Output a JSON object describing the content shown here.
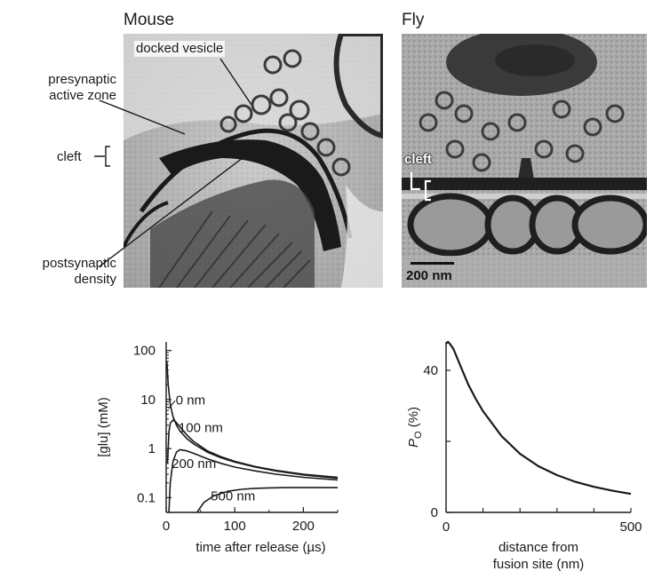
{
  "panels": {
    "mouse_title": "Mouse",
    "fly_title": "Fly"
  },
  "mouse_labels": {
    "docked_vesicle": "docked vesicle",
    "presynaptic_line1": "presynaptic",
    "presynaptic_line2": "active zone",
    "cleft": "cleft",
    "postsynaptic_line1": "postsynaptic",
    "postsynaptic_line2": "density"
  },
  "fly_labels": {
    "cleft": "cleft",
    "scale_bar": "200 nm"
  },
  "chart_data": [
    {
      "type": "line",
      "ylabel": "[glu] (mM)",
      "xlabel": "time after release (µs)",
      "yscale": "log",
      "xlim": [
        0,
        250
      ],
      "ylim": [
        0.05,
        150
      ],
      "xticks": [
        0,
        100,
        200
      ],
      "yticks": [
        100,
        10,
        1,
        0.1
      ],
      "ytick_labels": [
        "100",
        "10",
        "1",
        "0.1"
      ],
      "series": [
        {
          "name": "0 nm",
          "x": [
            1,
            3,
            6,
            10,
            15,
            20,
            30,
            40,
            60,
            80,
            100,
            130,
            160,
            200,
            250
          ],
          "y": [
            60,
            20,
            8,
            4.5,
            3,
            2.3,
            1.6,
            1.25,
            0.85,
            0.65,
            0.53,
            0.42,
            0.35,
            0.29,
            0.25
          ]
        },
        {
          "name": "100 nm",
          "x": [
            2,
            4,
            6,
            10,
            14,
            20,
            30,
            40,
            60,
            80,
            100,
            130,
            160,
            200,
            250
          ],
          "y": [
            0.5,
            2.2,
            3.3,
            3.8,
            3.5,
            2.8,
            1.9,
            1.4,
            0.9,
            0.68,
            0.55,
            0.43,
            0.36,
            0.3,
            0.26
          ]
        },
        {
          "name": "200 nm",
          "x": [
            4,
            6,
            10,
            15,
            20,
            30,
            40,
            60,
            80,
            100,
            130,
            160,
            200,
            250
          ],
          "y": [
            0.05,
            0.2,
            0.55,
            0.85,
            0.95,
            0.9,
            0.8,
            0.62,
            0.5,
            0.42,
            0.35,
            0.3,
            0.26,
            0.23
          ]
        },
        {
          "name": "500 nm",
          "x": [
            45,
            55,
            70,
            90,
            110,
            130,
            150,
            175,
            200,
            250
          ],
          "y": [
            0.05,
            0.08,
            0.11,
            0.135,
            0.148,
            0.155,
            0.158,
            0.16,
            0.16,
            0.16
          ]
        }
      ],
      "annotations": [
        "0 nm",
        "100 nm",
        "200 nm",
        "500 nm"
      ]
    },
    {
      "type": "line",
      "ylabel_main": "P",
      "ylabel_sub": "O",
      "ylabel_unit": " (%)",
      "xlabel_line1": "distance from",
      "xlabel_line2": "fusion site (nm)",
      "xlim": [
        0,
        500
      ],
      "ylim": [
        0,
        48
      ],
      "xticks": [
        0,
        500
      ],
      "yticks": [
        0,
        40
      ],
      "series": [
        {
          "name": "",
          "x": [
            0,
            5,
            10,
            20,
            40,
            60,
            80,
            100,
            150,
            200,
            250,
            300,
            350,
            400,
            450,
            500
          ],
          "y": [
            47.5,
            48,
            47.5,
            46,
            41,
            36,
            32,
            28.5,
            21.5,
            16.5,
            13,
            10.5,
            8.6,
            7.2,
            6.1,
            5.2
          ]
        }
      ]
    }
  ]
}
